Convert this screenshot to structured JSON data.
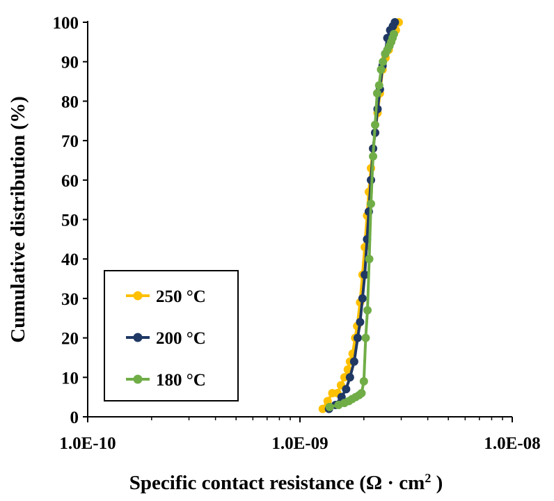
{
  "chart_data": {
    "type": "scatter",
    "xlabel_main": "Specific contact resistance (Ω · cm",
    "xlabel_sup": "2",
    "xlabel_end": " )",
    "ylabel": "Cumulative distribution (%)",
    "xscale": "log",
    "xlim": [
      1e-10,
      1e-08
    ],
    "ylim": [
      0,
      100
    ],
    "x_tick_labels": [
      "1.0E-10",
      "1.0E-09",
      "1.0E-08"
    ],
    "y_tick_labels": [
      "0",
      "10",
      "20",
      "30",
      "40",
      "50",
      "60",
      "70",
      "80",
      "90",
      "100"
    ],
    "grid": false,
    "legend_position": "lower-left",
    "series": [
      {
        "name": "250 °C",
        "color": "#FFC000",
        "x": [
          1.28e-09,
          1.35e-09,
          1.42e-09,
          1.5e-09,
          1.56e-09,
          1.62e-09,
          1.68e-09,
          1.72e-09,
          1.77e-09,
          1.82e-09,
          1.86e-09,
          1.92e-09,
          1.97e-09,
          2.02e-09,
          2.07e-09,
          2.11e-09,
          2.16e-09,
          2.21e-09,
          2.26e-09,
          2.32e-09,
          2.38e-09,
          2.45e-09,
          2.53e-09,
          2.62e-09,
          2.72e-09,
          2.83e-09,
          2.92e-09
        ],
        "y": [
          2,
          4,
          6,
          6,
          8,
          10,
          12,
          14,
          16,
          20,
          23,
          29,
          36,
          43,
          51,
          57,
          63,
          68,
          72,
          77,
          82,
          88,
          91,
          93,
          96,
          98,
          100
        ]
      },
      {
        "name": "200 °C",
        "color": "#1F3864",
        "x": [
          1.37e-09,
          1.47e-09,
          1.57e-09,
          1.65e-09,
          1.72e-09,
          1.8e-09,
          1.87e-09,
          1.92e-09,
          1.97e-09,
          2.02e-09,
          2.07e-09,
          2.11e-09,
          2.16e-09,
          2.21e-09,
          2.26e-09,
          2.32e-09,
          2.38e-09,
          2.45e-09,
          2.52e-09,
          2.58e-09,
          2.66e-09,
          2.74e-09,
          2.8e-09
        ],
        "y": [
          2,
          3,
          5,
          7,
          10,
          14,
          20,
          24,
          30,
          36,
          45,
          52,
          60,
          68,
          72,
          78,
          83,
          89,
          92,
          96,
          98,
          99,
          100
        ]
      },
      {
        "name": "180 °C",
        "color": "#70AD47",
        "x": [
          1.38e-09,
          1.52e-09,
          1.62e-09,
          1.7e-09,
          1.76e-09,
          1.83e-09,
          1.9e-09,
          1.95e-09,
          2e-09,
          2.04e-09,
          2.08e-09,
          2.12e-09,
          2.16e-09,
          2.21e-09,
          2.26e-09,
          2.31e-09,
          2.36e-09,
          2.41e-09,
          2.46e-09,
          2.52e-09,
          2.58e-09,
          2.64e-09,
          2.69e-09,
          2.73e-09,
          2.77e-09
        ],
        "y": [
          2.5,
          3,
          3.5,
          4,
          4.5,
          5,
          5.5,
          6,
          9,
          20,
          27,
          40,
          54,
          66,
          74,
          82,
          84,
          88,
          90,
          92,
          93,
          94,
          95,
          96,
          97
        ]
      }
    ]
  }
}
